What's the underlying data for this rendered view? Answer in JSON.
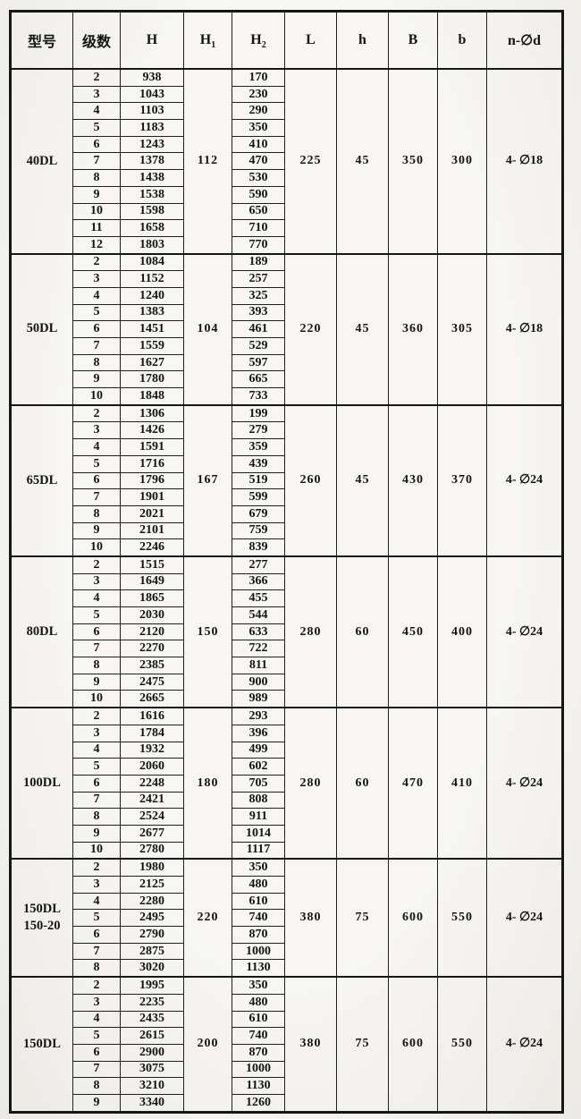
{
  "table": {
    "headers": [
      {
        "label": "型号"
      },
      {
        "label": "级数"
      },
      {
        "label": "H"
      },
      {
        "label": "H",
        "sub": "1"
      },
      {
        "label": "H",
        "sub": "2"
      },
      {
        "label": "L"
      },
      {
        "label": "h"
      },
      {
        "label": "B"
      },
      {
        "label": "b"
      },
      {
        "label": "n-∅d"
      }
    ],
    "sections": [
      {
        "model_lines": [
          "40DL"
        ],
        "h1": "112",
        "L": "225",
        "h": "45",
        "B": "350",
        "b": "300",
        "n_phi_d": "4- ∅18",
        "rows": [
          {
            "stages": "2",
            "H": "938",
            "H2": "170"
          },
          {
            "stages": "3",
            "H": "1043",
            "H2": "230"
          },
          {
            "stages": "4",
            "H": "1103",
            "H2": "290"
          },
          {
            "stages": "5",
            "H": "1183",
            "H2": "350"
          },
          {
            "stages": "6",
            "H": "1243",
            "H2": "410"
          },
          {
            "stages": "7",
            "H": "1378",
            "H2": "470"
          },
          {
            "stages": "8",
            "H": "1438",
            "H2": "530"
          },
          {
            "stages": "9",
            "H": "1538",
            "H2": "590"
          },
          {
            "stages": "10",
            "H": "1598",
            "H2": "650"
          },
          {
            "stages": "11",
            "H": "1658",
            "H2": "710"
          },
          {
            "stages": "12",
            "H": "1803",
            "H2": "770"
          }
        ]
      },
      {
        "model_lines": [
          "50DL"
        ],
        "h1": "104",
        "L": "220",
        "h": "45",
        "B": "360",
        "b": "305",
        "n_phi_d": "4- ∅18",
        "rows": [
          {
            "stages": "2",
            "H": "1084",
            "H2": "189"
          },
          {
            "stages": "3",
            "H": "1152",
            "H2": "257"
          },
          {
            "stages": "4",
            "H": "1240",
            "H2": "325"
          },
          {
            "stages": "5",
            "H": "1383",
            "H2": "393"
          },
          {
            "stages": "6",
            "H": "1451",
            "H2": "461"
          },
          {
            "stages": "7",
            "H": "1559",
            "H2": "529"
          },
          {
            "stages": "8",
            "H": "1627",
            "H2": "597"
          },
          {
            "stages": "9",
            "H": "1780",
            "H2": "665"
          },
          {
            "stages": "10",
            "H": "1848",
            "H2": "733"
          }
        ]
      },
      {
        "model_lines": [
          "65DL"
        ],
        "h1": "167",
        "L": "260",
        "h": "45",
        "B": "430",
        "b": "370",
        "n_phi_d": "4- ∅24",
        "rows": [
          {
            "stages": "2",
            "H": "1306",
            "H2": "199"
          },
          {
            "stages": "3",
            "H": "1426",
            "H2": "279"
          },
          {
            "stages": "4",
            "H": "1591",
            "H2": "359"
          },
          {
            "stages": "5",
            "H": "1716",
            "H2": "439"
          },
          {
            "stages": "6",
            "H": "1796",
            "H2": "519"
          },
          {
            "stages": "7",
            "H": "1901",
            "H2": "599"
          },
          {
            "stages": "8",
            "H": "2021",
            "H2": "679"
          },
          {
            "stages": "9",
            "H": "2101",
            "H2": "759"
          },
          {
            "stages": "10",
            "H": "2246",
            "H2": "839"
          }
        ]
      },
      {
        "model_lines": [
          "80DL"
        ],
        "h1": "150",
        "L": "280",
        "h": "60",
        "B": "450",
        "b": "400",
        "n_phi_d": "4- ∅24",
        "rows": [
          {
            "stages": "2",
            "H": "1515",
            "H2": "277"
          },
          {
            "stages": "3",
            "H": "1649",
            "H2": "366"
          },
          {
            "stages": "4",
            "H": "1865",
            "H2": "455"
          },
          {
            "stages": "5",
            "H": "2030",
            "H2": "544"
          },
          {
            "stages": "6",
            "H": "2120",
            "H2": "633"
          },
          {
            "stages": "7",
            "H": "2270",
            "H2": "722"
          },
          {
            "stages": "8",
            "H": "2385",
            "H2": "811"
          },
          {
            "stages": "9",
            "H": "2475",
            "H2": "900"
          },
          {
            "stages": "10",
            "H": "2665",
            "H2": "989"
          }
        ]
      },
      {
        "model_lines": [
          "100DL"
        ],
        "h1": "180",
        "L": "280",
        "h": "60",
        "B": "470",
        "b": "410",
        "n_phi_d": "4- ∅24",
        "rows": [
          {
            "stages": "2",
            "H": "1616",
            "H2": "293"
          },
          {
            "stages": "3",
            "H": "1784",
            "H2": "396"
          },
          {
            "stages": "4",
            "H": "1932",
            "H2": "499"
          },
          {
            "stages": "5",
            "H": "2060",
            "H2": "602"
          },
          {
            "stages": "6",
            "H": "2248",
            "H2": "705"
          },
          {
            "stages": "7",
            "H": "2421",
            "H2": "808"
          },
          {
            "stages": "8",
            "H": "2524",
            "H2": "911"
          },
          {
            "stages": "9",
            "H": "2677",
            "H2": "1014"
          },
          {
            "stages": "10",
            "H": "2780",
            "H2": "1117"
          }
        ]
      },
      {
        "model_lines": [
          "150DL",
          "150-20"
        ],
        "h1": "220",
        "L": "380",
        "h": "75",
        "B": "600",
        "b": "550",
        "n_phi_d": "4- ∅24",
        "rows": [
          {
            "stages": "2",
            "H": "1980",
            "H2": "350"
          },
          {
            "stages": "3",
            "H": "2125",
            "H2": "480"
          },
          {
            "stages": "4",
            "H": "2280",
            "H2": "610"
          },
          {
            "stages": "5",
            "H": "2495",
            "H2": "740"
          },
          {
            "stages": "6",
            "H": "2790",
            "H2": "870"
          },
          {
            "stages": "7",
            "H": "2875",
            "H2": "1000"
          },
          {
            "stages": "8",
            "H": "3020",
            "H2": "1130"
          }
        ]
      },
      {
        "model_lines": [
          "150DL"
        ],
        "h1": "200",
        "L": "380",
        "h": "75",
        "B": "600",
        "b": "550",
        "n_phi_d": "4- ∅24",
        "rows": [
          {
            "stages": "2",
            "H": "1995",
            "H2": "350"
          },
          {
            "stages": "3",
            "H": "2235",
            "H2": "480"
          },
          {
            "stages": "4",
            "H": "2435",
            "H2": "610"
          },
          {
            "stages": "5",
            "H": "2615",
            "H2": "740"
          },
          {
            "stages": "6",
            "H": "2900",
            "H2": "870"
          },
          {
            "stages": "7",
            "H": "3075",
            "H2": "1000"
          },
          {
            "stages": "8",
            "H": "3210",
            "H2": "1130"
          },
          {
            "stages": "9",
            "H": "3340",
            "H2": "1260"
          }
        ]
      }
    ]
  },
  "colors": {
    "ink": "#161616",
    "paper": "#f3f2ee"
  }
}
